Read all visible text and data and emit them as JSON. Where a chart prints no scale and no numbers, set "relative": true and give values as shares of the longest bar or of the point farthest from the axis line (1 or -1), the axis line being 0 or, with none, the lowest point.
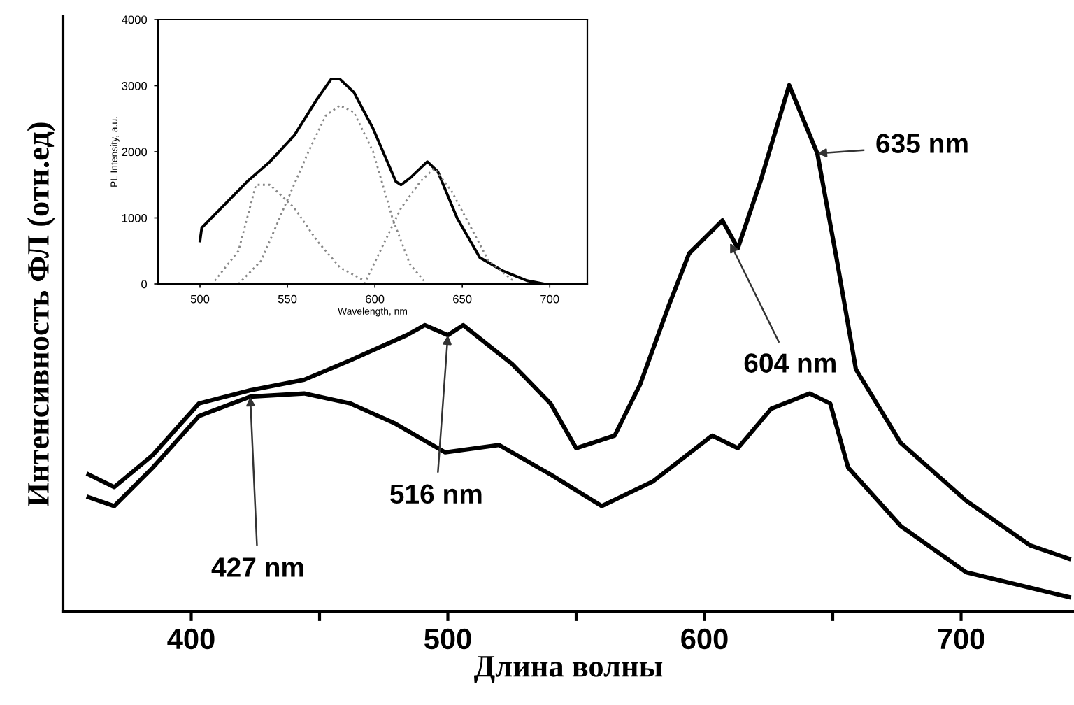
{
  "chart_data": [
    {
      "type": "line",
      "relative": true,
      "xlabel": "Длина волны",
      "ylabel": "Интенсивность ФЛ (отн.ед)",
      "xlim": [
        350,
        744
      ],
      "xticks": [
        400,
        {
          "value": 450,
          "label": null
        },
        500,
        {
          "value": 550,
          "label": null
        },
        600,
        {
          "value": 650,
          "label": null
        },
        700
      ],
      "grid": false,
      "legend": false,
      "marker": "none",
      "line_style": "solid",
      "series": [
        {
          "color": "#000000",
          "x": [
            360,
            370,
            385,
            403,
            423,
            444,
            462,
            484,
            491,
            500,
            506,
            525,
            540,
            550,
            565,
            575,
            586,
            594,
            607,
            613,
            622,
            633,
            644,
            651.5,
            659,
            676.5,
            702,
            727,
            742
          ],
          "values": [
            0.26,
            0.236,
            0.297,
            0.395,
            0.42,
            0.44,
            0.477,
            0.525,
            0.544,
            0.525,
            0.544,
            0.47,
            0.395,
            0.31,
            0.334,
            0.432,
            0.58,
            0.68,
            0.743,
            0.69,
            0.82,
            1.0,
            0.87,
            0.67,
            0.46,
            0.32,
            0.21,
            0.125,
            0.1
          ]
        },
        {
          "color": "#000000",
          "x": [
            360,
            370,
            385,
            403,
            423,
            444,
            462,
            479,
            499,
            520,
            540,
            560,
            580,
            603,
            613,
            626,
            641,
            649,
            656,
            676.5,
            702,
            742
          ],
          "values": [
            0.217,
            0.2,
            0.273,
            0.371,
            0.408,
            0.414,
            0.395,
            0.358,
            0.302,
            0.316,
            0.26,
            0.2,
            0.247,
            0.334,
            0.31,
            0.385,
            0.414,
            0.395,
            0.273,
            0.162,
            0.074,
            0.027
          ]
        }
      ],
      "annotations": [
        {
          "text": "427 nm",
          "x": 423,
          "y": 0.408
        },
        {
          "text": "516 nm",
          "x": 500,
          "y": 0.525
        },
        {
          "text": "604 nm",
          "x": 610,
          "y": 0.7
        },
        {
          "text": "635 nm",
          "x": 644,
          "y": 0.87
        }
      ]
    },
    {
      "type": "line",
      "xlabel": "Wavelength, nm",
      "ylabel": "PL Intensity, a.u.",
      "xlim": [
        476,
        721.5
      ],
      "xticks": [
        500,
        550,
        600,
        650,
        700
      ],
      "ylim": [
        0,
        4000
      ],
      "yticks": [
        0,
        1000,
        2000,
        3000,
        4000
      ],
      "grid": false,
      "legend": false,
      "marker": "none",
      "series": [
        {
          "color": "#000000",
          "line_style": "solid",
          "x": [
            500,
            501,
            514,
            527,
            540,
            554,
            567,
            575,
            580,
            588,
            599,
            612,
            615,
            620,
            630,
            636,
            647,
            660,
            673,
            687,
            697
          ],
          "values": [
            650,
            850,
            1200,
            1550,
            1850,
            2250,
            2800,
            3100,
            3100,
            2900,
            2350,
            1550,
            1500,
            1600,
            1850,
            1700,
            1000,
            400,
            200,
            50,
            0
          ]
        },
        {
          "color": "#888888",
          "line_style": "dotted",
          "x": [
            508.5,
            522,
            532,
            540,
            554,
            567,
            580,
            594
          ],
          "values": [
            50,
            500,
            1500,
            1500,
            1150,
            650,
            250,
            50
          ]
        },
        {
          "color": "#888888",
          "line_style": "dotted",
          "x": [
            522,
            535,
            548,
            562,
            572,
            580,
            588,
            599,
            610,
            620,
            628
          ],
          "values": [
            0,
            350,
            1150,
            2000,
            2550,
            2700,
            2600,
            2000,
            1000,
            300,
            50
          ]
        },
        {
          "color": "#888888",
          "line_style": "dotted",
          "x": [
            594,
            604,
            615,
            626,
            634,
            644,
            655,
            665,
            679
          ],
          "values": [
            0,
            550,
            1150,
            1550,
            1750,
            1400,
            850,
            350,
            50
          ]
        }
      ]
    }
  ]
}
